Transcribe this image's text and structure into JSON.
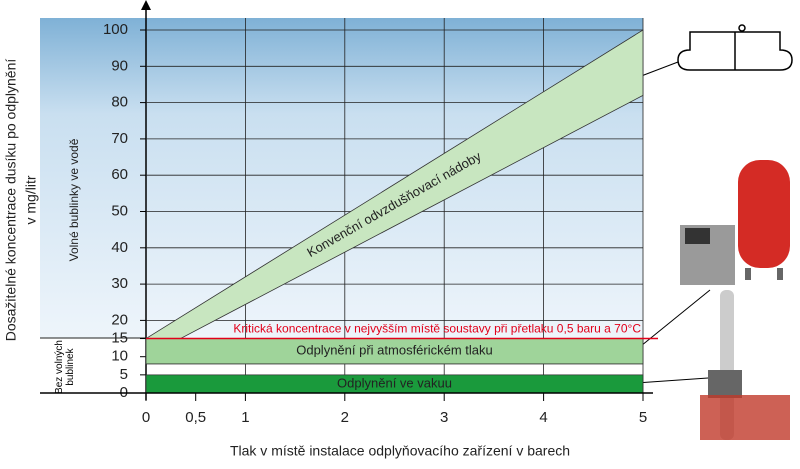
{
  "chart_data": {
    "type": "band",
    "ylabel": [
      "Dosažitelné koncentrace dusíku po odplynění",
      "v mg/litr"
    ],
    "xlabel": "Tlak v místě instalace odplyňovacího zařízení v barech",
    "x": [
      0,
      5
    ],
    "xlim": [
      0,
      5
    ],
    "ylim": [
      0,
      100
    ],
    "xticks": [
      0,
      {
        "value": 0.5,
        "label": "0,5"
      },
      1,
      2,
      3,
      4,
      5
    ],
    "yticks": [
      0,
      5,
      10,
      15,
      20,
      30,
      40,
      50,
      60,
      70,
      80,
      90,
      100
    ],
    "grid": true,
    "bands": [
      {
        "name": "Konvenční odvzdušňovací nádoby",
        "color": "#c8e6c0",
        "lower": [
          10,
          82
        ],
        "upper": [
          15,
          100
        ]
      },
      {
        "name": "Odplynění při atmosférickém tlaku",
        "color": "#9fd49a",
        "lower": [
          8,
          8
        ],
        "upper": [
          15,
          15
        ]
      },
      {
        "name": "Odplynění ve vakuu",
        "color": "#1a9a3c",
        "lower": [
          0,
          0
        ],
        "upper": [
          5,
          5
        ]
      }
    ],
    "threshold": {
      "value": 15,
      "label": "Kritická koncentrace v nejvyšším místě soustavy při přetlaku 0,5 baru a 70°C",
      "color": "#e2001a"
    },
    "zones": [
      "Volné bublinky ve vodě",
      "Bez volných bublinek"
    ]
  }
}
